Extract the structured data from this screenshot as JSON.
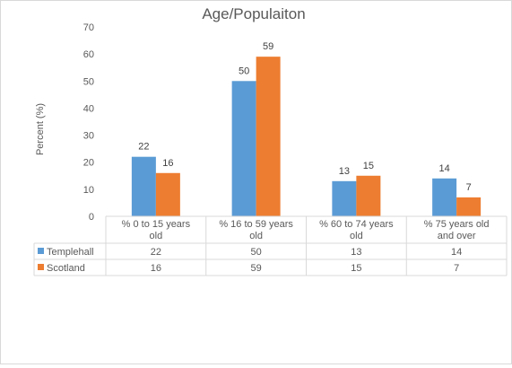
{
  "chart_data": {
    "type": "bar",
    "title": "Age/Populaiton",
    "ylabel": "Percent (%)",
    "xlabel": "",
    "ylim": [
      0,
      70
    ],
    "yticks": [
      0,
      10,
      20,
      30,
      40,
      50,
      60,
      70
    ],
    "grid": false,
    "legend": "data-table",
    "categories": [
      [
        "% 0 to 15 years",
        "old"
      ],
      [
        "% 16 to 59 years",
        "old"
      ],
      [
        "% 60 to 74 years",
        "old"
      ],
      [
        "% 75 years old",
        "and over"
      ]
    ],
    "series": [
      {
        "name": "Templehall",
        "color": "#5b9bd5",
        "values": [
          22,
          50,
          13,
          14
        ]
      },
      {
        "name": "Scotland",
        "color": "#ed7d31",
        "values": [
          16,
          59,
          15,
          7
        ]
      }
    ]
  }
}
